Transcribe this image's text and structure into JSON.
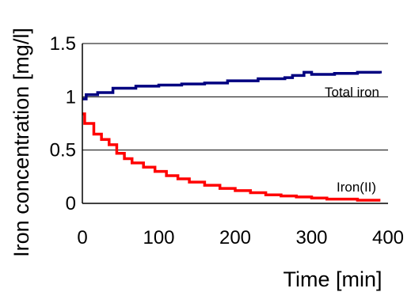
{
  "chart_data": {
    "type": "line",
    "xlabel": "Time [min]",
    "ylabel": "Iron concentration [mg/l]",
    "xlim": [
      0,
      400
    ],
    "ylim": [
      0,
      1.5
    ],
    "x_ticks": [
      "0",
      "100",
      "200",
      "300",
      "400"
    ],
    "y_ticks": [
      "0",
      "0.5",
      "1",
      "1.5"
    ],
    "grid": "horizontal",
    "legend": "none",
    "series": [
      {
        "name": "Total iron",
        "color": "#000080",
        "step": true,
        "x": [
          0,
          5,
          20,
          40,
          70,
          100,
          130,
          160,
          190,
          230,
          265,
          275,
          290,
          300,
          330,
          360,
          390
        ],
        "y": [
          0.98,
          1.02,
          1.04,
          1.08,
          1.1,
          1.11,
          1.12,
          1.13,
          1.15,
          1.17,
          1.18,
          1.2,
          1.23,
          1.21,
          1.22,
          1.23,
          1.22
        ]
      },
      {
        "name": "Iron(II)",
        "color": "#ff0000",
        "step": true,
        "x": [
          0,
          3,
          15,
          25,
          35,
          45,
          55,
          65,
          80,
          95,
          110,
          125,
          140,
          160,
          180,
          200,
          220,
          240,
          260,
          280,
          300,
          320,
          340,
          360,
          390
        ],
        "y": [
          0.84,
          0.75,
          0.65,
          0.6,
          0.55,
          0.47,
          0.42,
          0.38,
          0.34,
          0.3,
          0.26,
          0.23,
          0.2,
          0.17,
          0.14,
          0.12,
          0.1,
          0.08,
          0.07,
          0.06,
          0.05,
          0.04,
          0.04,
          0.03,
          0.03
        ]
      }
    ]
  }
}
